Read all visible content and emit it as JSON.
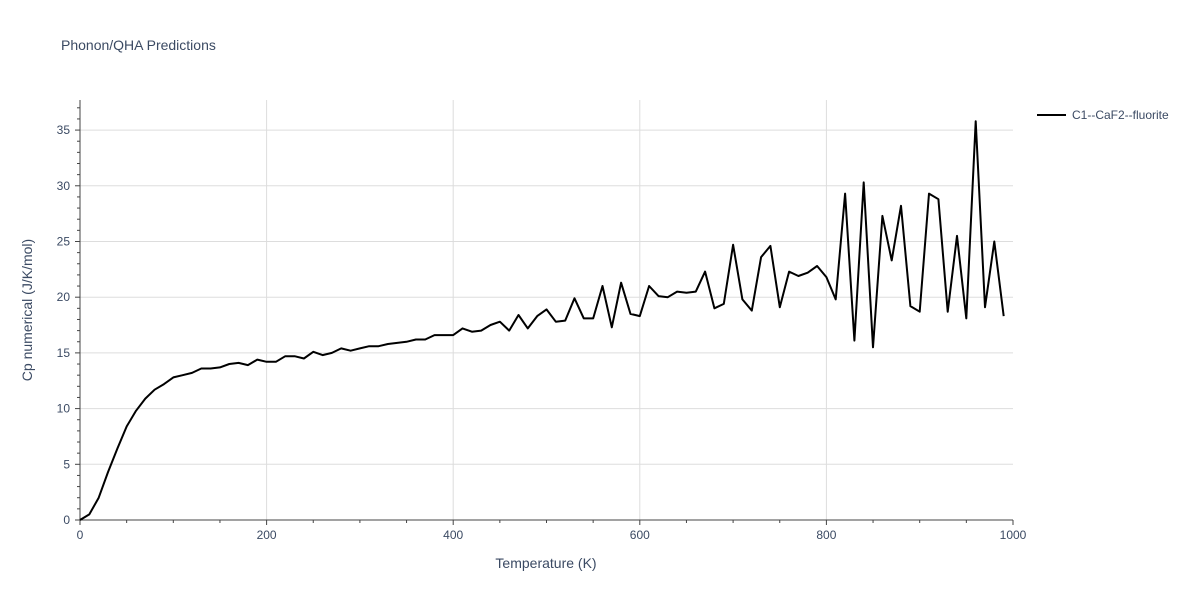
{
  "chart_data": {
    "type": "line",
    "title": "Phonon/QHA Predictions",
    "xlabel": "Temperature (K)",
    "ylabel": "Cp numerical (J/K/mol)",
    "xlim": [
      0,
      1000
    ],
    "ylim": [
      0,
      37.7
    ],
    "xticks": [
      0,
      200,
      400,
      600,
      800,
      1000
    ],
    "yticks": [
      0,
      5,
      10,
      15,
      20,
      25,
      30,
      35
    ],
    "grid": true,
    "legend_position": "top-right",
    "colors": {
      "series": "#000000",
      "grid": "#dddddd",
      "axis": "#444444",
      "text": "#3b4a63"
    },
    "series": [
      {
        "name": "C1--CaF2--fluorite",
        "x": [
          0,
          10,
          20,
          30,
          40,
          50,
          60,
          70,
          80,
          90,
          100,
          110,
          120,
          130,
          140,
          150,
          160,
          170,
          180,
          190,
          200,
          210,
          220,
          230,
          240,
          250,
          260,
          270,
          280,
          290,
          300,
          310,
          320,
          330,
          340,
          350,
          360,
          370,
          380,
          390,
          400,
          410,
          420,
          430,
          440,
          450,
          460,
          470,
          480,
          490,
          500,
          510,
          520,
          530,
          540,
          550,
          560,
          570,
          580,
          590,
          600,
          610,
          620,
          630,
          640,
          650,
          660,
          670,
          680,
          690,
          700,
          710,
          720,
          730,
          740,
          750,
          760,
          770,
          780,
          790,
          800,
          810,
          820,
          830,
          840,
          850,
          860,
          870,
          880,
          890,
          900,
          910,
          920,
          930,
          940,
          950,
          960,
          970,
          980,
          990
        ],
        "y": [
          0,
          0.5,
          2.0,
          4.3,
          6.4,
          8.4,
          9.8,
          10.9,
          11.7,
          12.2,
          12.8,
          13.0,
          13.2,
          13.6,
          13.6,
          13.7,
          14.0,
          14.1,
          13.9,
          14.4,
          14.2,
          14.2,
          14.7,
          14.7,
          14.5,
          15.1,
          14.8,
          15.0,
          15.4,
          15.2,
          15.4,
          15.6,
          15.6,
          15.8,
          15.9,
          16.0,
          16.2,
          16.2,
          16.6,
          16.6,
          16.6,
          17.2,
          16.9,
          17.0,
          17.5,
          17.8,
          17.0,
          18.4,
          17.2,
          18.3,
          18.9,
          17.8,
          17.9,
          19.9,
          18.1,
          18.1,
          21.0,
          17.3,
          21.3,
          18.5,
          18.3,
          21.0,
          20.1,
          20.0,
          20.5,
          20.4,
          20.5,
          22.3,
          19.0,
          19.4,
          24.7,
          19.8,
          18.8,
          23.6,
          24.6,
          19.1,
          22.3,
          21.9,
          22.2,
          22.8,
          21.8,
          19.8,
          29.3,
          16.1,
          30.3,
          15.5,
          27.3,
          23.3,
          28.2,
          19.2,
          18.7,
          29.3,
          28.8,
          18.7,
          25.5,
          18.1,
          35.8,
          19.1,
          25.0,
          18.3
        ]
      }
    ]
  }
}
